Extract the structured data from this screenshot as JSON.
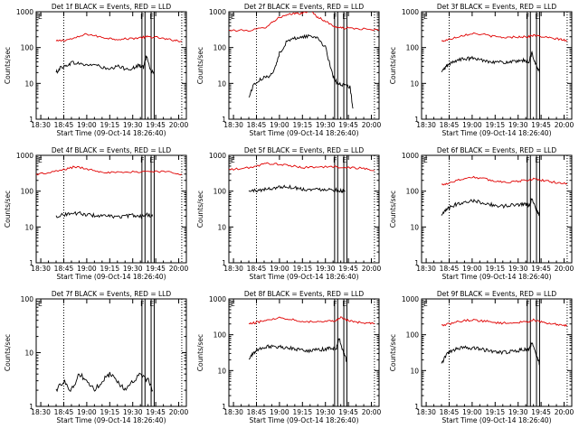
{
  "colors": {
    "events": "#000000",
    "lld": "#e00000",
    "frame": "#000000"
  },
  "common": {
    "xlabel": "Start Time (09-Oct-14 18:26:40)",
    "ylabel": "Counts/sec",
    "x_tick_labels": [
      "18:30",
      "18:45",
      "19:00",
      "19:15",
      "19:30",
      "19:45",
      "20:00"
    ],
    "y_tick_labels": [
      "1",
      "10",
      "100",
      "1000"
    ]
  },
  "chart_data": [
    {
      "type": "line",
      "title": "Det 1f BLACK = Events, RED = LLD",
      "xlim": [
        "18:27",
        "20:05"
      ],
      "ylim": [
        1,
        1000
      ],
      "yscale": "log",
      "markers": [
        "F",
        "E"
      ],
      "series": [
        {
          "name": "LLD",
          "color": "#e00000",
          "x": [
            "18:40",
            "18:45",
            "18:52",
            "19:00",
            "19:08",
            "19:15",
            "19:22",
            "19:30",
            "19:36",
            "19:40",
            "19:46",
            "19:52",
            "19:58",
            "20:02"
          ],
          "y": [
            150,
            160,
            180,
            240,
            200,
            180,
            170,
            180,
            190,
            200,
            190,
            170,
            160,
            150
          ]
        },
        {
          "name": "Events",
          "color": "#000000",
          "x": [
            "18:40",
            "18:43",
            "18:46",
            "18:50",
            "18:55",
            "19:00",
            "19:05",
            "19:10",
            "19:15",
            "19:20",
            "19:25",
            "19:30",
            "19:34",
            "19:37",
            "19:39",
            "19:42",
            "19:44"
          ],
          "y": [
            20,
            28,
            30,
            38,
            36,
            32,
            34,
            28,
            24,
            30,
            26,
            26,
            32,
            28,
            60,
            22,
            20
          ]
        }
      ]
    },
    {
      "type": "line",
      "title": "Det 2f BLACK = Events, RED = LLD",
      "xlim": [
        "18:27",
        "20:05"
      ],
      "ylim": [
        1,
        1000
      ],
      "yscale": "log",
      "markers": [
        "F",
        "E"
      ],
      "series": [
        {
          "name": "LLD",
          "color": "#e00000",
          "x": [
            "18:27",
            "18:40",
            "18:50",
            "18:55",
            "19:00",
            "19:05",
            "19:10",
            "19:15",
            "19:20",
            "19:25",
            "19:30",
            "19:35",
            "19:40",
            "19:45",
            "19:55",
            "20:05"
          ],
          "y": [
            300,
            300,
            350,
            500,
            700,
            800,
            900,
            900,
            1100,
            700,
            550,
            400,
            350,
            350,
            330,
            300
          ]
        },
        {
          "name": "Events",
          "color": "#000000",
          "x": [
            "18:40",
            "18:43",
            "18:48",
            "18:53",
            "18:57",
            "19:00",
            "19:05",
            "19:10",
            "19:15",
            "19:20",
            "19:25",
            "19:30",
            "19:35",
            "19:38",
            "19:42",
            "19:46",
            "19:48"
          ],
          "y": [
            4,
            9,
            13,
            16,
            25,
            70,
            150,
            180,
            200,
            210,
            190,
            100,
            15,
            10,
            9,
            8,
            2
          ]
        }
      ]
    },
    {
      "type": "line",
      "title": "Det 3f BLACK = Events, RED = LLD",
      "xlim": [
        "18:27",
        "20:05"
      ],
      "ylim": [
        1,
        1000
      ],
      "yscale": "log",
      "markers": [
        "F",
        "E"
      ],
      "series": [
        {
          "name": "LLD",
          "color": "#e00000",
          "x": [
            "18:40",
            "18:45",
            "18:52",
            "19:00",
            "19:08",
            "19:15",
            "19:22",
            "19:30",
            "19:36",
            "19:40",
            "19:46",
            "19:52",
            "19:58",
            "20:02"
          ],
          "y": [
            150,
            170,
            210,
            250,
            230,
            200,
            190,
            200,
            200,
            220,
            200,
            180,
            170,
            150
          ]
        },
        {
          "name": "Events",
          "color": "#000000",
          "x": [
            "18:40",
            "18:43",
            "18:46",
            "18:50",
            "18:55",
            "19:00",
            "19:05",
            "19:10",
            "19:15",
            "19:20",
            "19:25",
            "19:30",
            "19:34",
            "19:37",
            "19:39",
            "19:42",
            "19:44"
          ],
          "y": [
            20,
            30,
            36,
            45,
            48,
            50,
            46,
            42,
            40,
            38,
            40,
            40,
            44,
            40,
            70,
            30,
            20
          ]
        }
      ]
    },
    {
      "type": "line",
      "title": "Det 4f BLACK = Events, RED = LLD",
      "xlim": [
        "18:27",
        "20:05"
      ],
      "ylim": [
        1,
        1000
      ],
      "yscale": "log",
      "markers": [
        "F",
        "E"
      ],
      "series": [
        {
          "name": "LLD",
          "color": "#e00000",
          "x": [
            "18:27",
            "18:35",
            "18:45",
            "18:52",
            "19:00",
            "19:08",
            "19:15",
            "19:25",
            "19:35",
            "19:45",
            "19:55",
            "20:02"
          ],
          "y": [
            300,
            320,
            400,
            480,
            420,
            360,
            330,
            330,
            350,
            360,
            340,
            300
          ]
        },
        {
          "name": "Events",
          "color": "#000000",
          "x": [
            "18:40",
            "18:45",
            "18:50",
            "18:55",
            "19:00",
            "19:05",
            "19:10",
            "19:15",
            "19:20",
            "19:25",
            "19:30",
            "19:35",
            "19:40",
            "19:43"
          ],
          "y": [
            20,
            22,
            24,
            24,
            22,
            21,
            20,
            20,
            19,
            20,
            21,
            20,
            22,
            20
          ]
        }
      ]
    },
    {
      "type": "line",
      "title": "Det 5f BLACK = Events, RED = LLD",
      "xlim": [
        "18:27",
        "20:05"
      ],
      "ylim": [
        1,
        1000
      ],
      "yscale": "log",
      "markers": [
        "F",
        "E"
      ],
      "series": [
        {
          "name": "LLD",
          "color": "#e00000",
          "x": [
            "18:27",
            "18:35",
            "18:45",
            "18:52",
            "19:00",
            "19:08",
            "19:15",
            "19:25",
            "19:35",
            "19:45",
            "19:55",
            "20:02"
          ],
          "y": [
            400,
            420,
            500,
            600,
            560,
            500,
            460,
            470,
            480,
            460,
            430,
            380
          ]
        },
        {
          "name": "Events",
          "color": "#000000",
          "x": [
            "18:40",
            "18:45",
            "18:50",
            "18:55",
            "19:00",
            "19:05",
            "19:10",
            "19:15",
            "19:20",
            "19:25",
            "19:30",
            "19:35",
            "19:40",
            "19:43"
          ],
          "y": [
            100,
            105,
            110,
            120,
            130,
            135,
            125,
            115,
            110,
            112,
            115,
            110,
            105,
            100
          ]
        }
      ]
    },
    {
      "type": "line",
      "title": "Det 6f BLACK = Events, RED = LLD",
      "xlim": [
        "18:27",
        "20:05"
      ],
      "ylim": [
        1,
        1000
      ],
      "yscale": "log",
      "markers": [
        "F",
        "E"
      ],
      "series": [
        {
          "name": "LLD",
          "color": "#e00000",
          "x": [
            "18:40",
            "18:45",
            "18:52",
            "19:00",
            "19:08",
            "19:15",
            "19:22",
            "19:30",
            "19:36",
            "19:40",
            "19:46",
            "19:52",
            "19:58",
            "20:02"
          ],
          "y": [
            150,
            170,
            210,
            250,
            220,
            190,
            180,
            190,
            200,
            220,
            200,
            180,
            170,
            160
          ]
        },
        {
          "name": "Events",
          "color": "#000000",
          "x": [
            "18:40",
            "18:43",
            "18:46",
            "18:50",
            "18:55",
            "19:00",
            "19:05",
            "19:10",
            "19:15",
            "19:20",
            "19:25",
            "19:30",
            "19:34",
            "19:37",
            "19:39",
            "19:42",
            "19:44"
          ],
          "y": [
            20,
            30,
            36,
            44,
            50,
            55,
            50,
            44,
            40,
            38,
            40,
            42,
            45,
            40,
            60,
            30,
            20
          ]
        }
      ]
    },
    {
      "type": "line",
      "title": "Det 7f BLACK = Events, RED = LLD",
      "xlim": [
        "18:27",
        "20:05"
      ],
      "ylim": [
        1,
        100
      ],
      "yscale": "log",
      "markers": [
        "F",
        "E"
      ],
      "series": [
        {
          "name": "Events",
          "color": "#000000",
          "x": [
            "18:40",
            "18:45",
            "18:50",
            "18:55",
            "19:00",
            "19:05",
            "19:10",
            "19:15",
            "19:20",
            "19:25",
            "19:30",
            "19:35",
            "19:40",
            "19:43"
          ],
          "y": [
            2,
            3,
            2,
            4,
            3,
            2,
            3,
            4,
            3,
            2,
            3,
            4,
            3,
            2
          ]
        }
      ]
    },
    {
      "type": "line",
      "title": "Det 8f BLACK = Events, RED = LLD",
      "xlim": [
        "18:27",
        "20:05"
      ],
      "ylim": [
        1,
        1000
      ],
      "yscale": "log",
      "markers": [
        "F",
        "E"
      ],
      "series": [
        {
          "name": "LLD",
          "color": "#e00000",
          "x": [
            "18:40",
            "18:45",
            "18:52",
            "19:00",
            "19:08",
            "19:15",
            "19:22",
            "19:30",
            "19:36",
            "19:40",
            "19:46",
            "19:52",
            "19:58",
            "20:02"
          ],
          "y": [
            200,
            220,
            260,
            300,
            270,
            240,
            230,
            240,
            250,
            300,
            240,
            220,
            210,
            200
          ]
        },
        {
          "name": "Events",
          "color": "#000000",
          "x": [
            "18:40",
            "18:43",
            "18:46",
            "18:50",
            "18:55",
            "19:00",
            "19:05",
            "19:10",
            "19:15",
            "19:20",
            "19:25",
            "19:30",
            "19:34",
            "19:37",
            "19:39",
            "19:42",
            "19:44"
          ],
          "y": [
            20,
            32,
            38,
            45,
            48,
            46,
            44,
            40,
            38,
            36,
            38,
            40,
            44,
            40,
            80,
            30,
            18
          ]
        }
      ]
    },
    {
      "type": "line",
      "title": "Det 9f BLACK = Events, RED = LLD",
      "xlim": [
        "18:27",
        "20:05"
      ],
      "ylim": [
        1,
        1000
      ],
      "yscale": "log",
      "markers": [
        "F",
        "E"
      ],
      "series": [
        {
          "name": "LLD",
          "color": "#e00000",
          "x": [
            "18:40",
            "18:45",
            "18:52",
            "19:00",
            "19:08",
            "19:15",
            "19:22",
            "19:30",
            "19:36",
            "19:40",
            "19:46",
            "19:52",
            "19:58",
            "20:02"
          ],
          "y": [
            180,
            200,
            240,
            260,
            240,
            220,
            210,
            220,
            230,
            260,
            220,
            200,
            190,
            180
          ]
        },
        {
          "name": "Events",
          "color": "#000000",
          "x": [
            "18:40",
            "18:43",
            "18:46",
            "18:50",
            "18:55",
            "19:00",
            "19:05",
            "19:10",
            "19:15",
            "19:20",
            "19:25",
            "19:30",
            "19:34",
            "19:37",
            "19:39",
            "19:42",
            "19:44"
          ],
          "y": [
            15,
            28,
            34,
            40,
            44,
            42,
            40,
            36,
            34,
            32,
            34,
            36,
            40,
            36,
            60,
            26,
            16
          ]
        }
      ]
    }
  ]
}
